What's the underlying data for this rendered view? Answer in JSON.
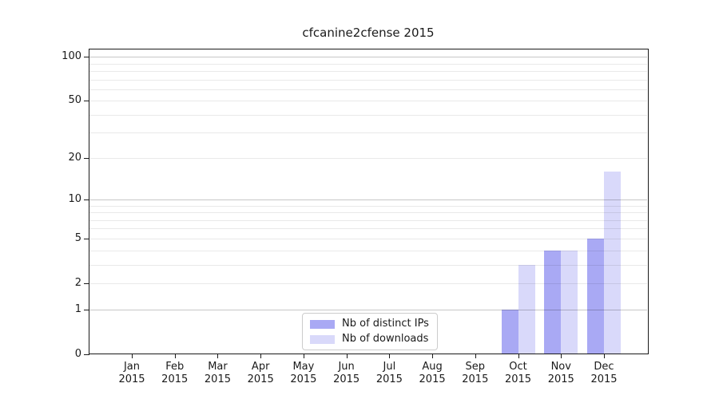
{
  "chart_data": {
    "type": "bar",
    "title": "cfcanine2cfense 2015",
    "categories": [
      "Jan 2015",
      "Feb 2015",
      "Mar 2015",
      "Apr 2015",
      "May 2015",
      "Jun 2015",
      "Jul 2015",
      "Aug 2015",
      "Sep 2015",
      "Oct 2015",
      "Nov 2015",
      "Dec 2015"
    ],
    "series": [
      {
        "name": "Nb of distinct IPs",
        "color": "#a9a9f4",
        "values": [
          0,
          0,
          0,
          0,
          0,
          0,
          0,
          0,
          0,
          1,
          4,
          5
        ]
      },
      {
        "name": "Nb of downloads",
        "color": "#d9d9fa",
        "values": [
          0,
          0,
          0,
          0,
          0,
          0,
          0,
          0,
          0,
          3,
          4,
          16
        ]
      }
    ],
    "xlabel": "",
    "ylabel": "",
    "yscale": "log1p",
    "ylim": [
      0,
      111
    ],
    "y_ticks": [
      0,
      1,
      2,
      5,
      10,
      20,
      50,
      100
    ],
    "y_tick_labels": [
      "0",
      "1",
      "2",
      "5",
      "10",
      "20",
      "50",
      "100"
    ],
    "grid": {
      "orientation": "horizontal",
      "major_levels": [
        1,
        10,
        100
      ],
      "minor_levels": [
        2,
        3,
        4,
        5,
        6,
        7,
        8,
        9,
        20,
        30,
        40,
        50,
        60,
        70,
        80,
        90
      ],
      "major_color": "#c8c8c8",
      "minor_color": "#e9e9e9"
    },
    "legend": {
      "position": "inside-bottom-center",
      "entries": [
        "Nb of distinct IPs",
        "Nb of downloads"
      ]
    },
    "colors": {
      "spine": "#1a1a1a",
      "tick_text": "#1a1a1a",
      "background": "#ffffff"
    }
  }
}
